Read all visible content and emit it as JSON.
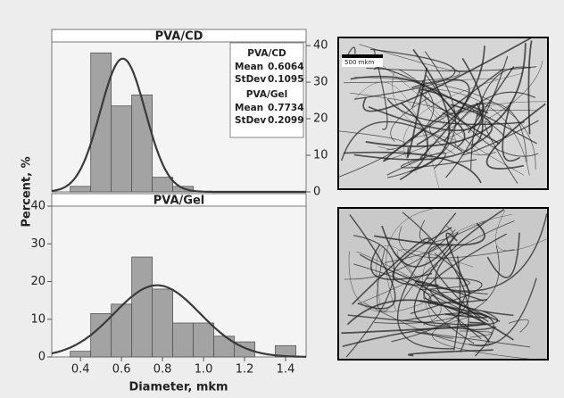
{
  "chart_data": [
    {
      "type": "histogram",
      "title": "PVA/CD",
      "bins": [
        0.35,
        0.45,
        0.55,
        0.65,
        0.75,
        0.85,
        0.95
      ],
      "values": [
        1.5,
        38,
        23.5,
        26.5,
        4,
        1.5
      ],
      "mean": 0.6064,
      "stdev": 0.1095,
      "xlim": [
        0.26,
        1.5
      ],
      "ylim": [
        0,
        41
      ],
      "yticks": [
        0,
        10,
        20,
        30,
        40
      ],
      "yaxis_side": "right",
      "color": "#a3a3a3",
      "fit_color": "#3a3a3a"
    },
    {
      "type": "histogram",
      "title": "PVA/Gel",
      "bins": [
        0.35,
        0.45,
        0.55,
        0.65,
        0.75,
        0.85,
        0.95,
        1.05,
        1.15,
        1.25,
        1.35,
        1.45
      ],
      "values": [
        1.5,
        11.5,
        14,
        26.5,
        18,
        9,
        9,
        5.5,
        4,
        0,
        3
      ],
      "mean": 0.7734,
      "stdev": 0.2099,
      "xlim": [
        0.26,
        1.5
      ],
      "ylim": [
        0,
        40
      ],
      "yticks": [
        0,
        10,
        20,
        30,
        40
      ],
      "xticks": [
        0.4,
        0.6,
        0.8,
        {
          "value": 1,
          "label": "1.0"
        },
        1.2,
        1.4
      ],
      "yaxis_side": "left",
      "color": "#a3a3a3",
      "fit_color": "#3a3a3a"
    }
  ],
  "x_label": "Diameter, mkm",
  "y_label": "Percent, %",
  "stat_labels": [
    "Mean",
    "StDev"
  ],
  "images": [
    {
      "scale_bar": "500 mkm"
    }
  ]
}
